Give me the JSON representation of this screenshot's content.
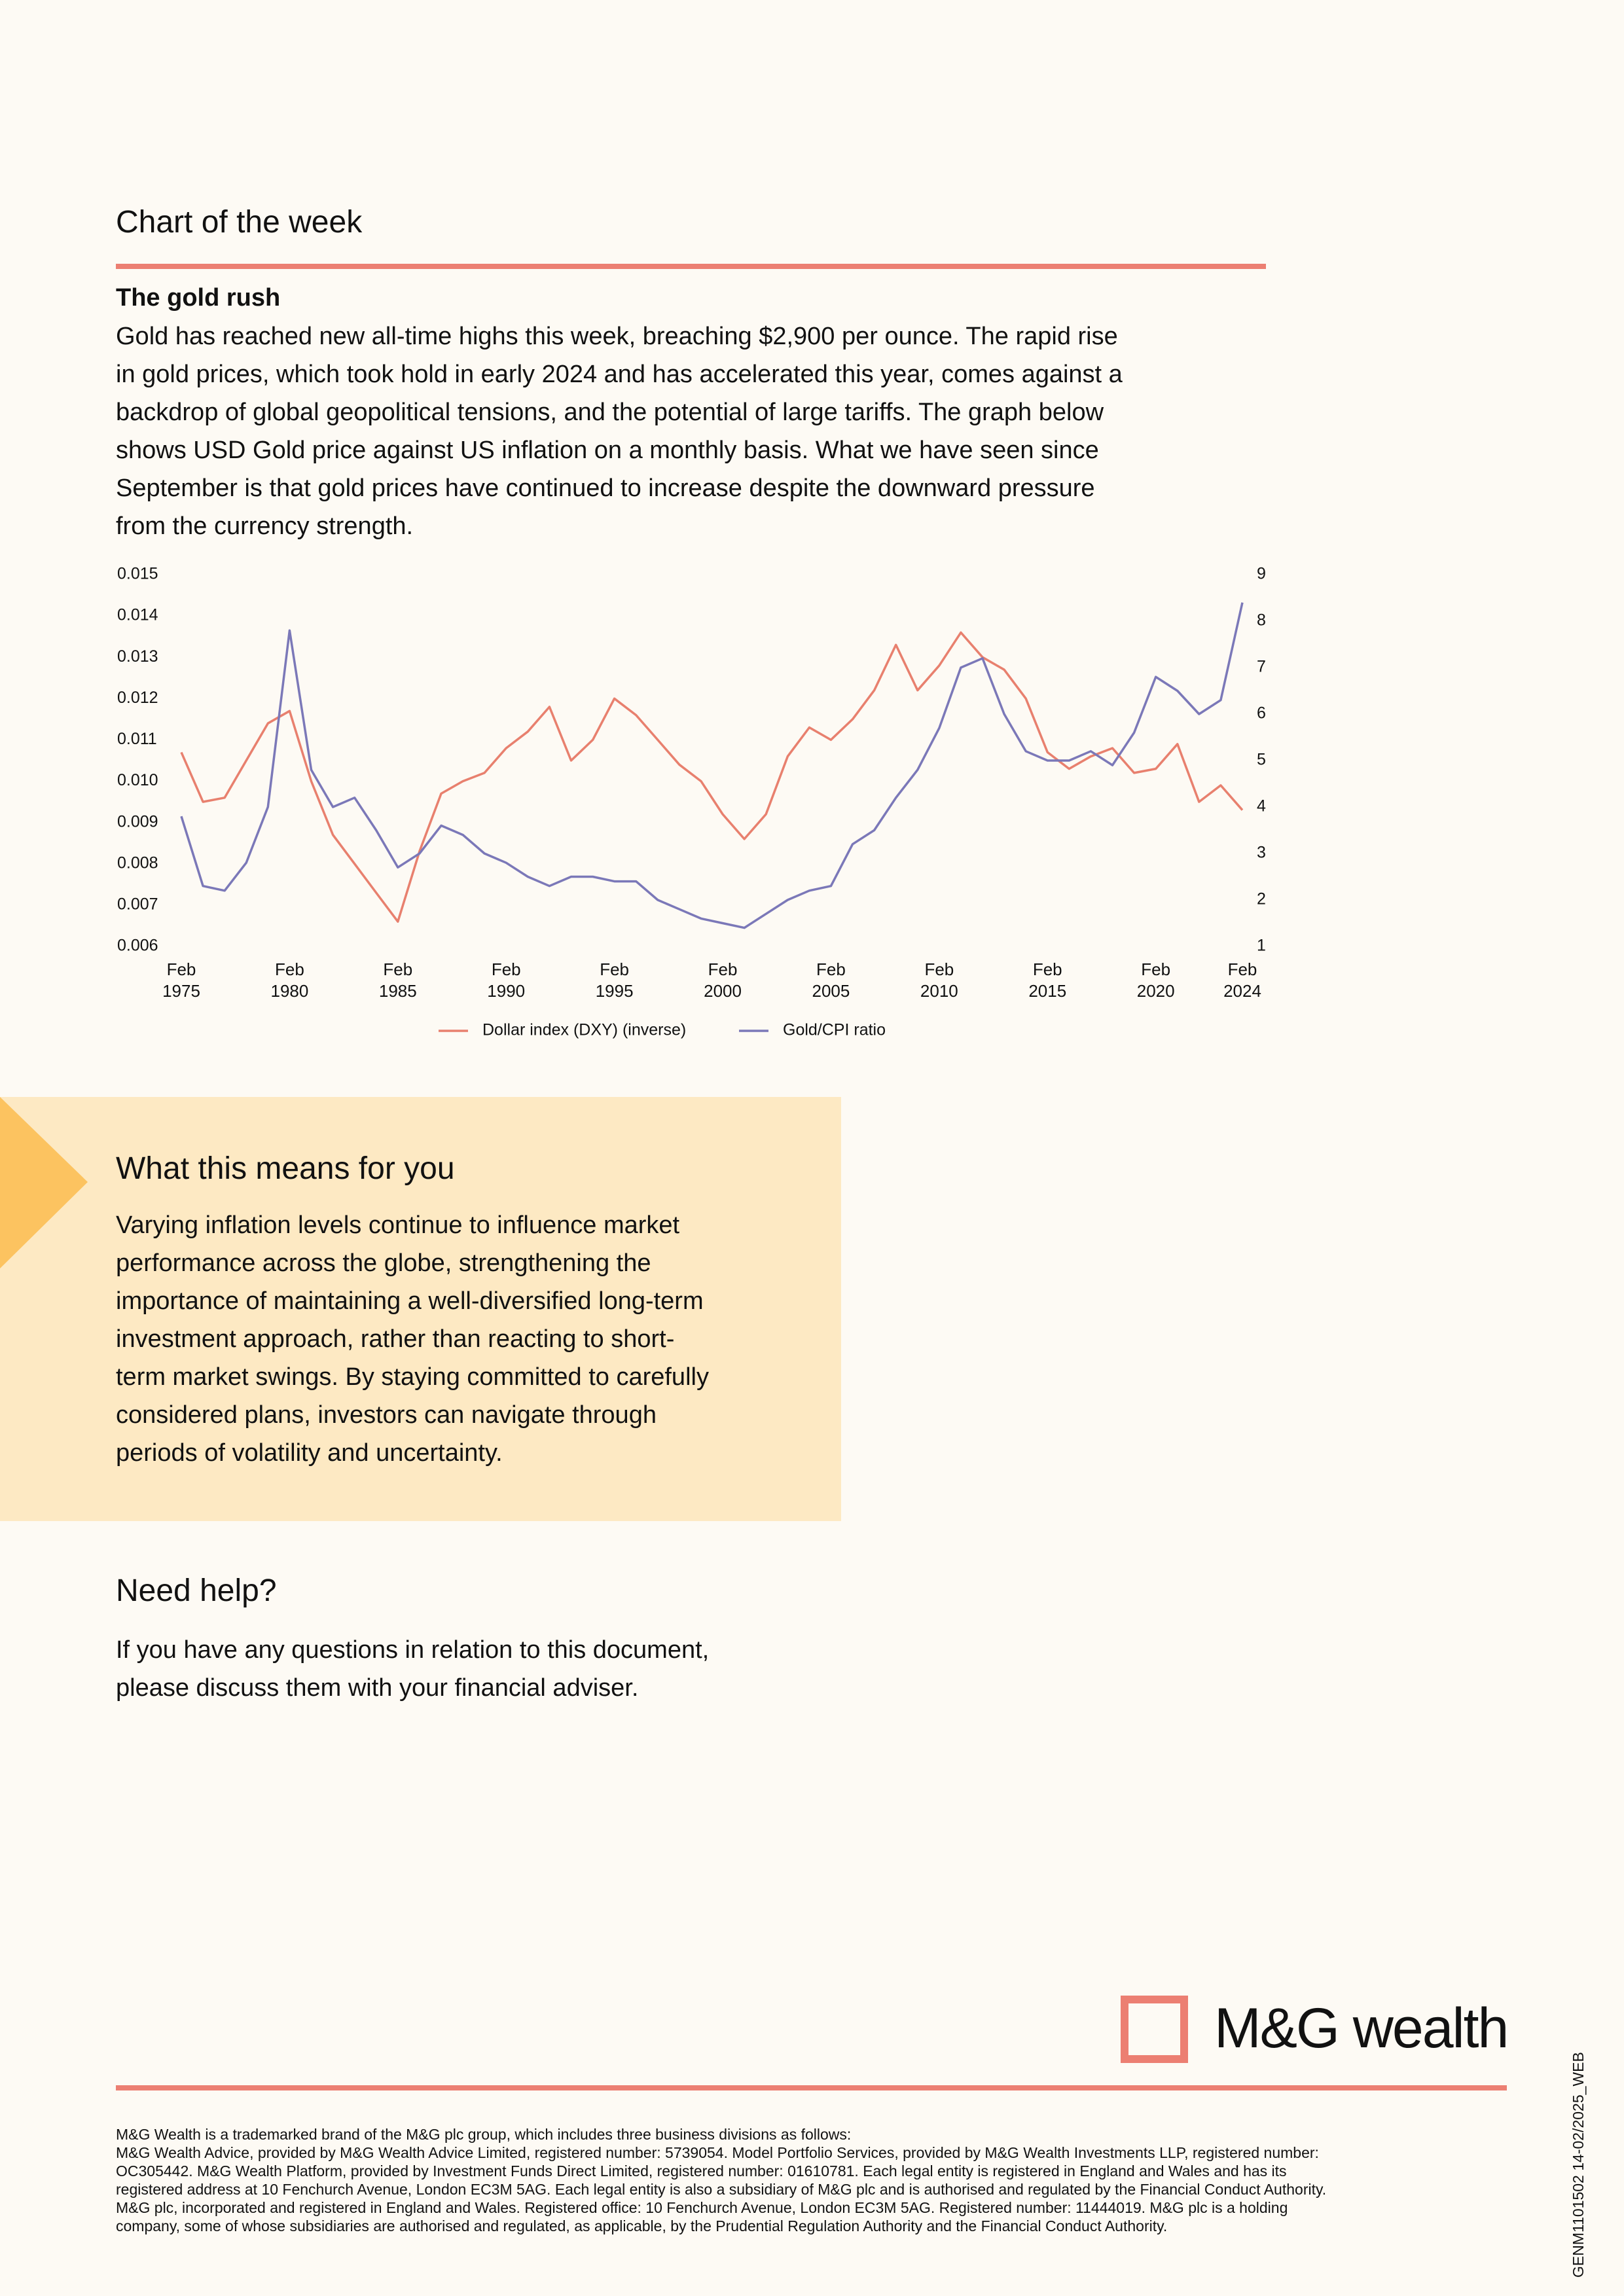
{
  "header": {
    "title": "Chart of the week"
  },
  "article": {
    "subtitle": "The gold rush",
    "lines": [
      "Gold has reached new all-time highs this week, breaching $2,900 per ounce. The rapid rise",
      "in gold prices, which took hold in early 2024 and has accelerated this year, comes against a",
      "backdrop of global geopolitical tensions, and the potential of large tariffs. The graph below",
      "shows USD Gold price against US inflation on a monthly basis. What we have seen since",
      "September is that gold prices have continued to increase despite the downward pressure",
      "from the currency strength."
    ]
  },
  "chart_data": {
    "type": "line",
    "x": [
      "Feb 1975",
      "Feb 1976",
      "Feb 1977",
      "Feb 1978",
      "Feb 1979",
      "Feb 1980",
      "Feb 1981",
      "Feb 1982",
      "Feb 1983",
      "Feb 1984",
      "Feb 1985",
      "Feb 1986",
      "Feb 1987",
      "Feb 1988",
      "Feb 1989",
      "Feb 1990",
      "Feb 1991",
      "Feb 1992",
      "Feb 1993",
      "Feb 1994",
      "Feb 1995",
      "Feb 1996",
      "Feb 1997",
      "Feb 1998",
      "Feb 1999",
      "Feb 2000",
      "Feb 2001",
      "Feb 2002",
      "Feb 2003",
      "Feb 2004",
      "Feb 2005",
      "Feb 2006",
      "Feb 2007",
      "Feb 2008",
      "Feb 2009",
      "Feb 2010",
      "Feb 2011",
      "Feb 2012",
      "Feb 2013",
      "Feb 2014",
      "Feb 2015",
      "Feb 2016",
      "Feb 2017",
      "Feb 2018",
      "Feb 2019",
      "Feb 2020",
      "Feb 2021",
      "Feb 2022",
      "Feb 2023",
      "Feb 2024"
    ],
    "xticks": [
      "Feb 1975",
      "Feb 1980",
      "Feb 1985",
      "Feb 1990",
      "Feb 1995",
      "Feb 2000",
      "Feb 2005",
      "Feb 2010",
      "Feb 2015",
      "Feb 2020",
      "Feb 2024"
    ],
    "ylim": [
      0.006,
      0.015
    ],
    "yticks": [
      0.006,
      0.007,
      0.008,
      0.009,
      {
        "value": 0.01,
        "label": "0.010"
      },
      0.011,
      0.012,
      0.013,
      0.014,
      0.015
    ],
    "y2lim": [
      1,
      9
    ],
    "y2ticks": [
      1,
      2,
      3,
      4,
      5,
      6,
      7,
      8,
      9
    ],
    "legend": "bottom",
    "series": [
      {
        "name": "Dollar index (DXY) (inverse)",
        "color": "#e8806e",
        "values": [
          0.0107,
          0.0095,
          0.0096,
          0.0105,
          0.0114,
          0.0117,
          0.01,
          0.0087,
          0.008,
          0.0073,
          0.0066,
          0.0083,
          0.0097,
          0.01,
          0.0102,
          0.0108,
          0.0112,
          0.0118,
          0.0105,
          0.011,
          0.012,
          0.0116,
          0.011,
          0.0104,
          0.01,
          0.0092,
          0.0086,
          0.0092,
          0.0106,
          0.0113,
          0.011,
          0.0115,
          0.0122,
          0.0133,
          0.0122,
          0.0128,
          0.0136,
          0.013,
          0.0127,
          0.012,
          0.0107,
          0.0103,
          0.0106,
          0.0108,
          0.0102,
          0.0103,
          0.0109,
          0.0095,
          0.0099,
          0.0093
        ]
      },
      {
        "name": "Gold/CPI ratio",
        "color": "#7b78b8",
        "axis": "y2",
        "values": [
          3.8,
          2.3,
          2.2,
          2.8,
          4.0,
          7.8,
          4.8,
          4.0,
          4.2,
          3.5,
          2.7,
          3.0,
          3.6,
          3.4,
          3.0,
          2.8,
          2.5,
          2.3,
          2.5,
          2.5,
          2.4,
          2.4,
          2.0,
          1.8,
          1.6,
          1.5,
          1.4,
          1.7,
          2.0,
          2.2,
          2.3,
          3.2,
          3.5,
          4.2,
          4.8,
          5.7,
          7.0,
          7.2,
          6.0,
          5.2,
          5.0,
          5.0,
          5.2,
          4.9,
          5.6,
          6.8,
          6.5,
          6.0,
          6.3,
          8.4
        ]
      }
    ]
  },
  "callout": {
    "title": "What this means for you",
    "lines": [
      "Varying inflation levels continue to influence market",
      "performance across the globe, strengthening the",
      "importance of maintaining a well-diversified long-term",
      "investment approach, rather than reacting to short-",
      "term market swings. By staying committed to carefully",
      "considered plans, investors can navigate through",
      "periods of volatility and uncertainty."
    ]
  },
  "help": {
    "title": "Need help?",
    "lines": [
      "If you have any questions in relation to this document,",
      "please discuss them with your financial adviser."
    ]
  },
  "logo": {
    "text": "M&G wealth"
  },
  "footer": {
    "lines": [
      "M&G Wealth is a trademarked brand of the M&G plc group, which includes three business divisions as follows:",
      "M&G Wealth Advice, provided by M&G Wealth Advice Limited, registered number: 5739054. Model Portfolio Services, provided by M&G Wealth Investments LLP, registered number:",
      "OC305442. M&G Wealth Platform, provided by Investment Funds Direct Limited, registered number: 01610781. Each legal entity is registered in England and Wales and has its",
      "registered address at 10 Fenchurch Avenue, London EC3M 5AG.  Each legal entity is also a subsidiary of M&G plc and is authorised and regulated by the Financial Conduct Authority.",
      "M&G plc, incorporated and registered in England and Wales. Registered office: 10 Fenchurch Avenue, London EC3M 5AG. Registered number: 11444019. M&G plc is a holding",
      "company, some of whose subsidiaries are authorised and regulated, as applicable, by the Prudential Regulation Authority and the Financial Conduct Authority."
    ]
  },
  "reference": "GENM1101502 14-02/2025_WEB"
}
